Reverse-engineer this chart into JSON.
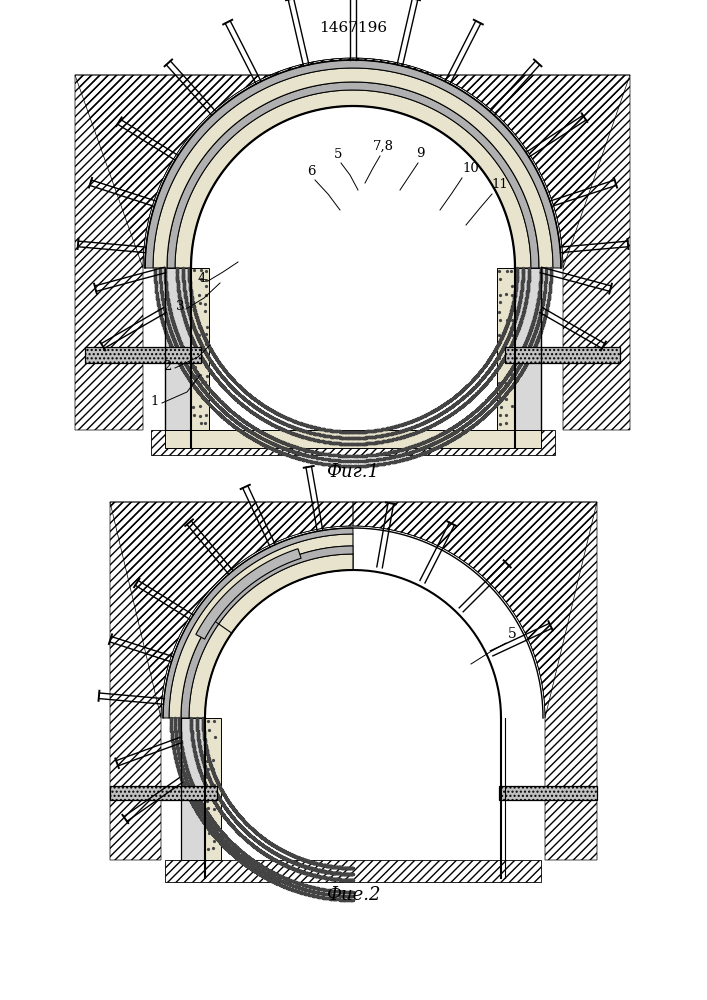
{
  "title": "1467196",
  "fig1_caption": "Фиг.1",
  "fig2_caption": "Фие.2",
  "bg_color": "#ffffff"
}
